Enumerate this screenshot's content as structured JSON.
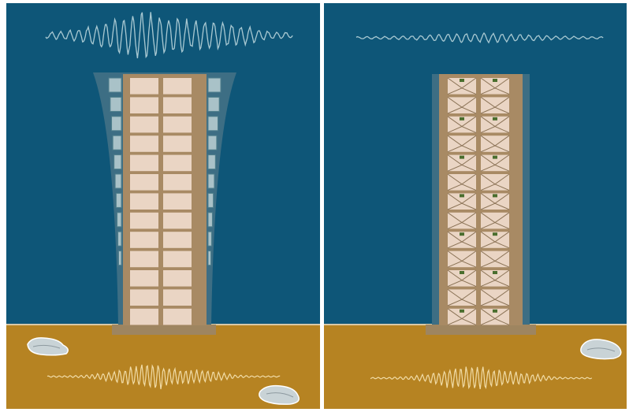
{
  "colors": {
    "sky": "#0e5678",
    "ground": "#b68322",
    "building_frame": "#a88a64",
    "window": "#ead5c4",
    "glass": "#a9c2c8",
    "glass_frame": "#4f7f8c",
    "shadow": "#3d6e84",
    "wave_sky": "#a9c9d2",
    "wave_ground": "#f1dca7",
    "rock": "#c9d3d6",
    "base": "#9e8560",
    "damper": "#4a6e2e",
    "divider": "#ffffff"
  },
  "panels": [
    {
      "name": "left-panel",
      "scene": "swaying-building",
      "sky_wave": "large-amplitude",
      "ground_wave": "strong",
      "floors": 13,
      "bays": 2,
      "dampers": false
    },
    {
      "name": "right-panel",
      "scene": "damped-building",
      "sky_wave": "small-amplitude",
      "ground_wave": "strong",
      "floors": 13,
      "bays": 2,
      "dampers": true
    }
  ]
}
